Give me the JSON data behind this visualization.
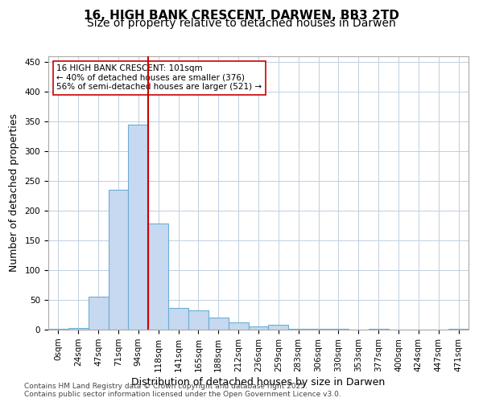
{
  "title1": "16, HIGH BANK CRESCENT, DARWEN, BB3 2TD",
  "title2": "Size of property relative to detached houses in Darwen",
  "xlabel": "Distribution of detached houses by size in Darwen",
  "ylabel": "Number of detached properties",
  "categories": [
    "0sqm",
    "24sqm",
    "47sqm",
    "71sqm",
    "94sqm",
    "118sqm",
    "141sqm",
    "165sqm",
    "188sqm",
    "212sqm",
    "236sqm",
    "259sqm",
    "283sqm",
    "306sqm",
    "330sqm",
    "353sqm",
    "377sqm",
    "400sqm",
    "424sqm",
    "447sqm",
    "471sqm"
  ],
  "values": [
    2,
    3,
    55,
    235,
    345,
    178,
    37,
    33,
    20,
    12,
    6,
    8,
    2,
    1,
    2,
    0,
    1,
    0,
    0,
    0,
    1
  ],
  "bar_color": "#c6d9f0",
  "bar_edge_color": "#6baed6",
  "bar_edge_width": 0.8,
  "red_line_x": 4,
  "red_line_color": "#cc0000",
  "annotation_text": "16 HIGH BANK CRESCENT: 101sqm\n← 40% of detached houses are smaller (376)\n56% of semi-detached houses are larger (521) →",
  "annotation_box_color": "#ffffff",
  "annotation_box_edge": "#cc0000",
  "ylim": [
    0,
    460
  ],
  "yticks": [
    0,
    50,
    100,
    150,
    200,
    250,
    300,
    350,
    400,
    450
  ],
  "background_color": "#ffffff",
  "grid_color": "#c0cfe0",
  "footer_text": "Contains HM Land Registry data © Crown copyright and database right 2025.\nContains public sector information licensed under the Open Government Licence v3.0.",
  "title_fontsize": 11,
  "subtitle_fontsize": 10,
  "xlabel_fontsize": 9,
  "ylabel_fontsize": 9,
  "tick_fontsize": 7.5,
  "annotation_fontsize": 7.5,
  "footer_fontsize": 6.5
}
